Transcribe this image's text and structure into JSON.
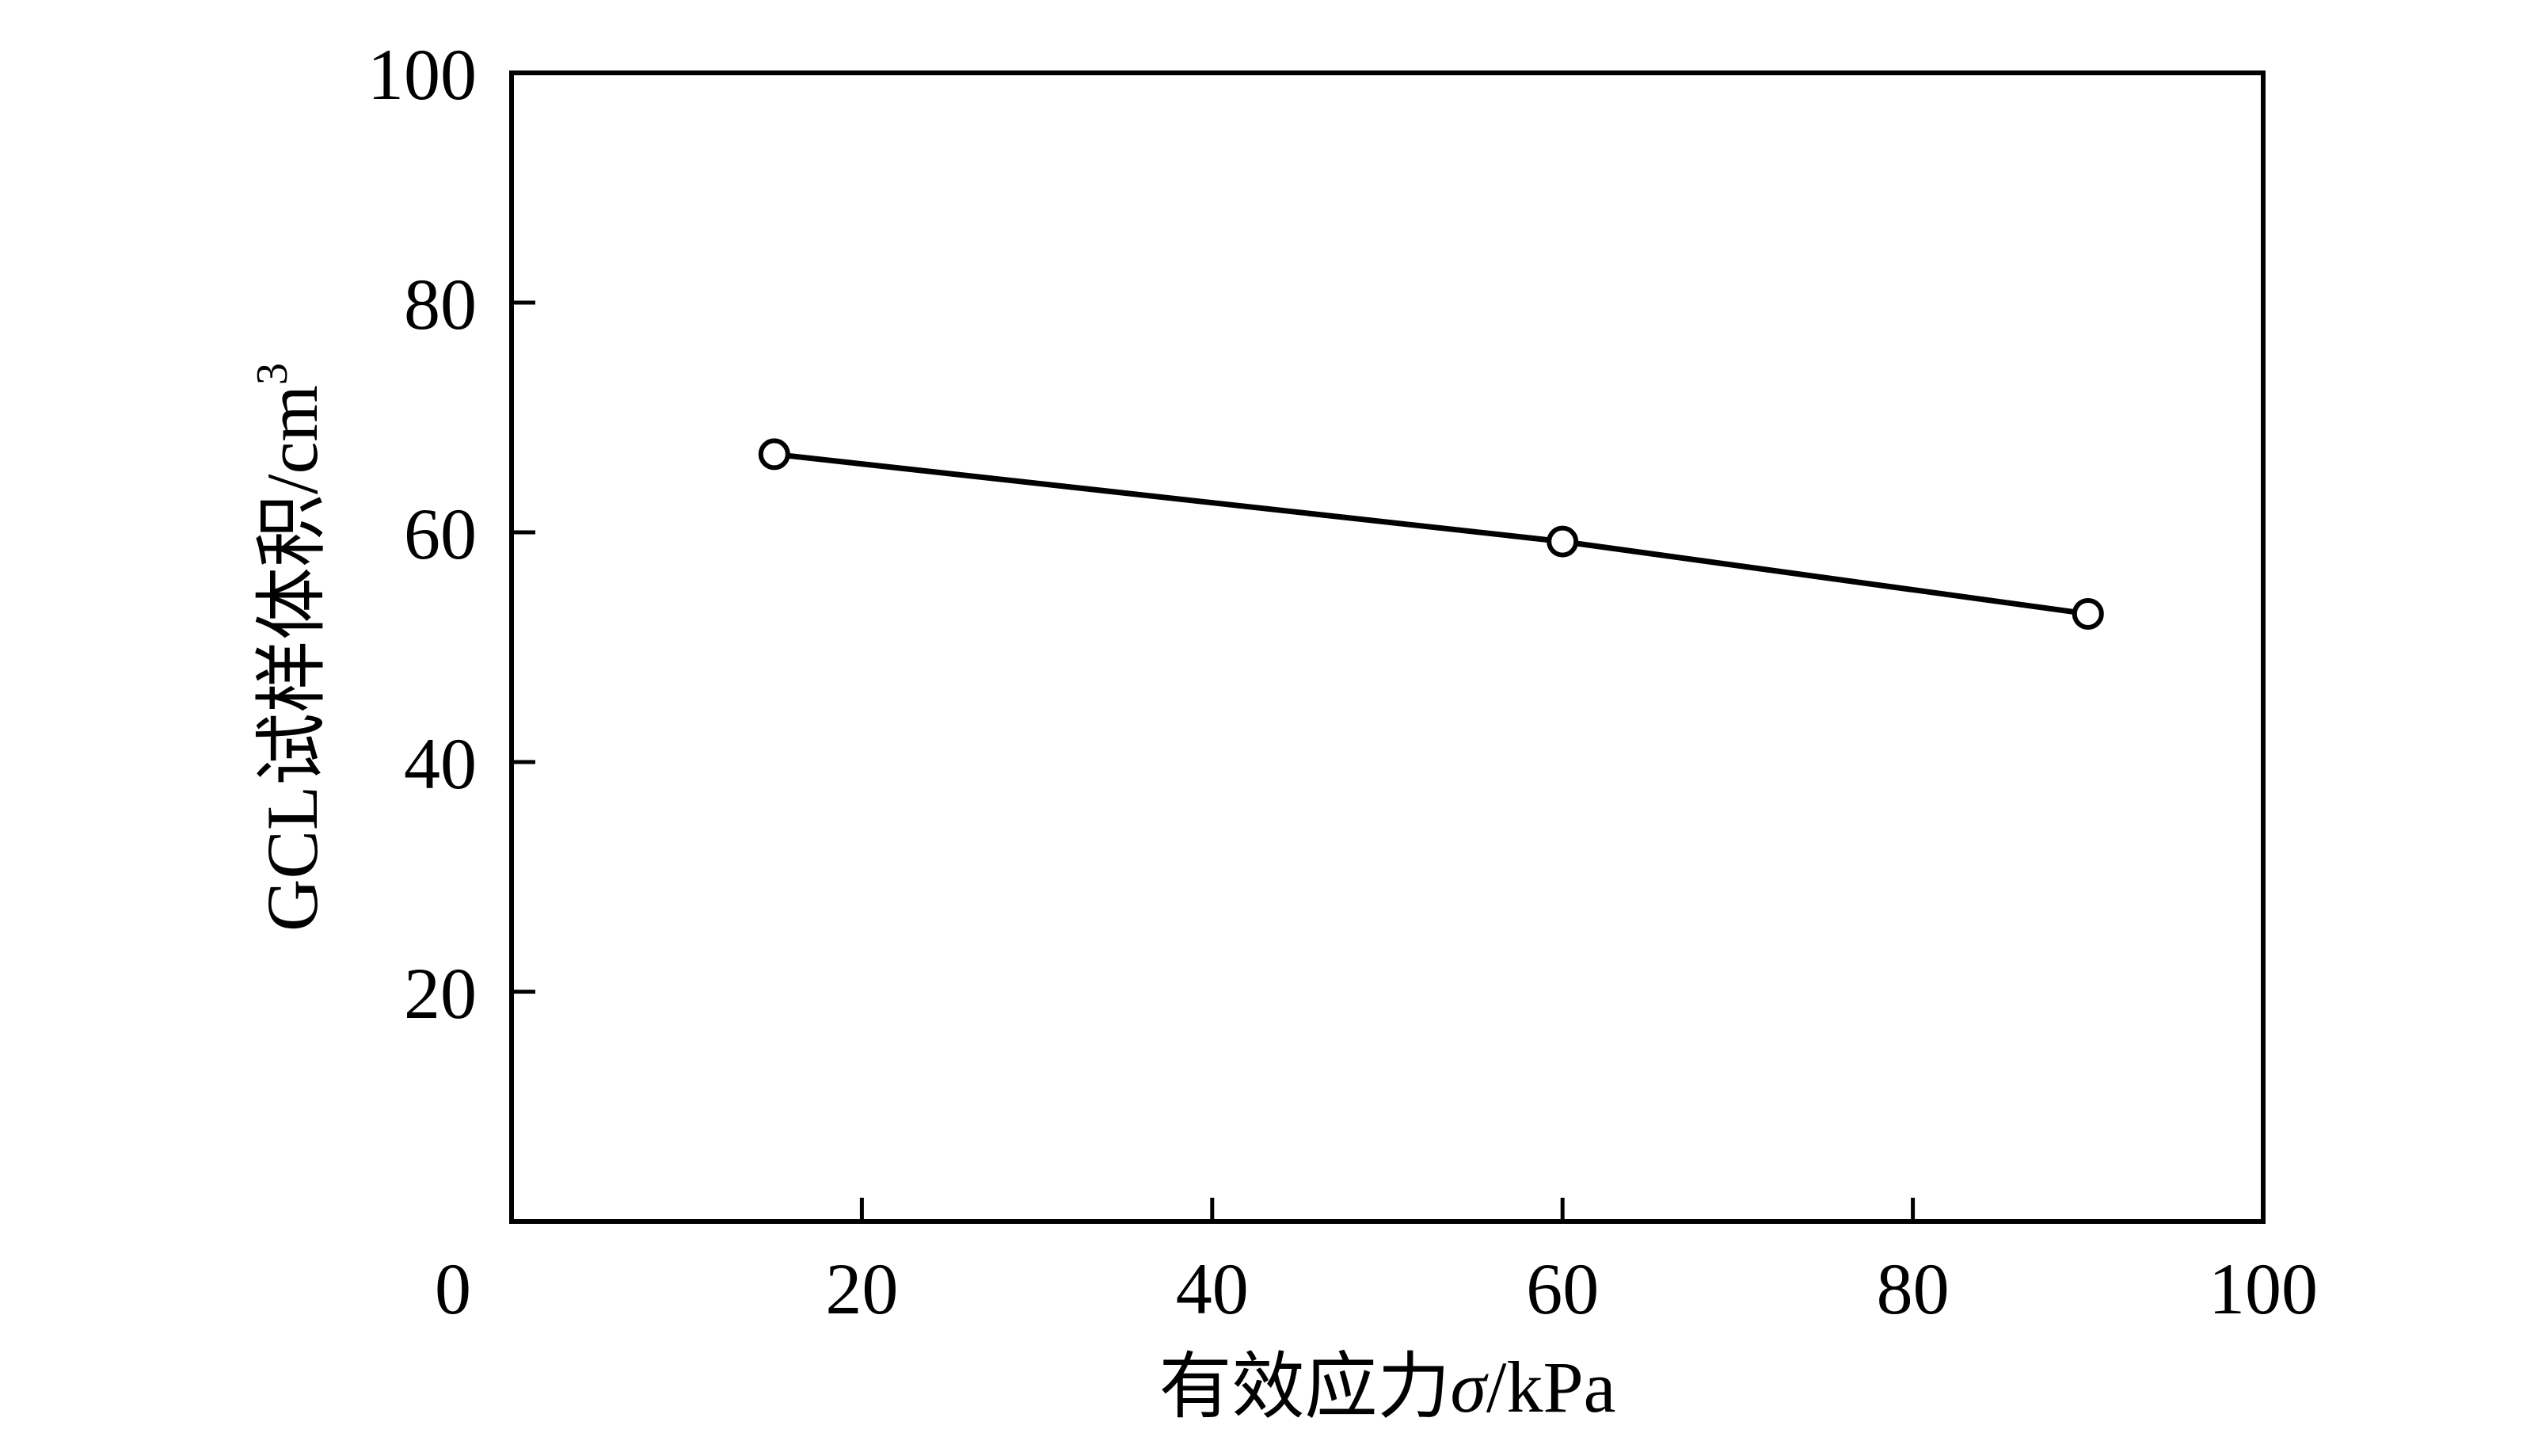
{
  "chart_data": {
    "type": "line",
    "xlabel": "有效应力σ/kPa",
    "xlabel_main": "有效应力",
    "xlabel_symbol": "σ",
    "xlabel_unit": "/kPa",
    "ylabel": "GCL试样体积/cm³",
    "ylabel_main": "GCL试样体积/cm",
    "ylabel_sup": "3",
    "xlim": [
      0,
      100
    ],
    "ylim": [
      0,
      100
    ],
    "xticks": [
      20,
      40,
      60,
      80,
      100
    ],
    "yticks": [
      20,
      40,
      60,
      80,
      100
    ],
    "origin_label": "0",
    "grid": false,
    "marker": "open-circle",
    "series": [
      {
        "x": [
          15,
          60,
          90
        ],
        "y": [
          66.8,
          59.2,
          52.9
        ]
      }
    ]
  }
}
